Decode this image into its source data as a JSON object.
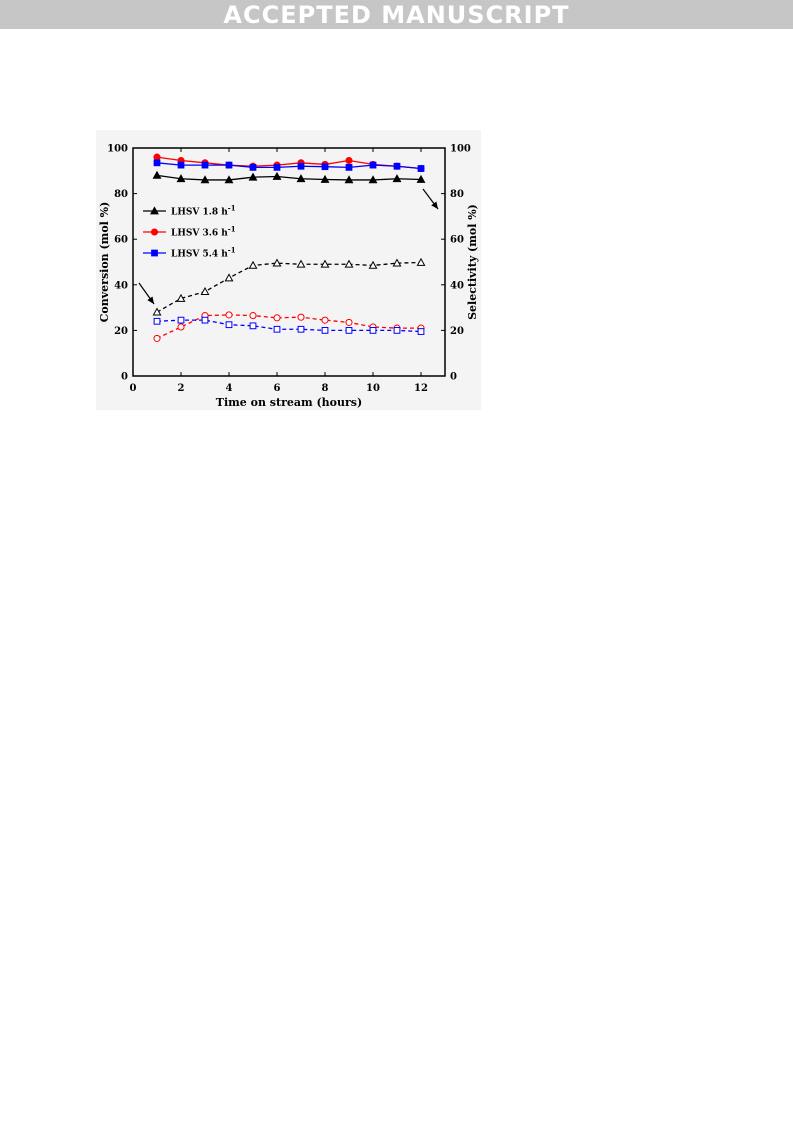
{
  "banner": {
    "text": "ACCEPTED MANUSCRIPT"
  },
  "chart_data": {
    "type": "line",
    "title": "",
    "xlabel": "Time on stream (hours)",
    "ylabel": "Conversion (mol %)",
    "y2label": "Selectivity (mol %)",
    "xlim": [
      0,
      13
    ],
    "ylim": [
      0,
      100
    ],
    "y2lim": [
      0,
      100
    ],
    "xticks": [
      0,
      2,
      4,
      6,
      8,
      10,
      12
    ],
    "yticks": [
      0,
      20,
      40,
      60,
      80,
      100
    ],
    "y2ticks": [
      0,
      20,
      40,
      60,
      80,
      100
    ],
    "x": [
      1,
      2,
      3,
      4,
      5,
      6,
      7,
      8,
      9,
      10,
      11,
      12
    ],
    "legend_placement": "upper-left",
    "series": [
      {
        "name": "LHSV 1.8 h⁻¹",
        "legend": {
          "text": "LHSV  1.8 h",
          "sup": "-1"
        },
        "axis": "conversion",
        "color": "#000000",
        "marker": "triangle",
        "filled": true,
        "dashed": false,
        "values": [
          88,
          86.5,
          86,
          86,
          87.2,
          87.5,
          86.5,
          86.2,
          86,
          86,
          86.5,
          86.2
        ]
      },
      {
        "name": "LHSV 3.6 h⁻¹",
        "legend": {
          "text": "LHSV  3.6 h",
          "sup": "-1"
        },
        "axis": "conversion",
        "color": "#ff0000",
        "marker": "circle",
        "filled": true,
        "dashed": false,
        "values": [
          96,
          94.5,
          93.5,
          92.5,
          92,
          92.5,
          93.5,
          92.8,
          94.5,
          92.8,
          92,
          91
        ]
      },
      {
        "name": "LHSV 5.4 h⁻¹",
        "legend": {
          "text": "LHSV  5.4 h",
          "sup": "-1"
        },
        "axis": "conversion",
        "color": "#0000ff",
        "marker": "square",
        "filled": true,
        "dashed": false,
        "values": [
          93.5,
          92.5,
          92.5,
          92.5,
          91.5,
          91.5,
          92,
          91.8,
          91.5,
          92.5,
          92,
          91
        ]
      },
      {
        "name": "",
        "axis": "selectivity",
        "color": "#000000",
        "marker": "triangle",
        "filled": false,
        "dashed": true,
        "values": [
          28,
          34,
          37,
          43,
          48.5,
          49.5,
          49,
          49,
          49,
          48.5,
          49.5,
          49.8
        ]
      },
      {
        "name": "",
        "axis": "selectivity",
        "color": "#ff0000",
        "marker": "circle",
        "filled": false,
        "dashed": true,
        "values": [
          16.5,
          21.5,
          26.5,
          26.8,
          26.5,
          25.5,
          25.8,
          24.5,
          23.5,
          21.5,
          21,
          21
        ]
      },
      {
        "name": "",
        "axis": "selectivity",
        "color": "#0000ff",
        "marker": "square",
        "filled": false,
        "dashed": true,
        "values": [
          24,
          24.5,
          24.5,
          22.5,
          22,
          20.5,
          20.5,
          20,
          20,
          20,
          20,
          19.5
        ]
      }
    ]
  }
}
